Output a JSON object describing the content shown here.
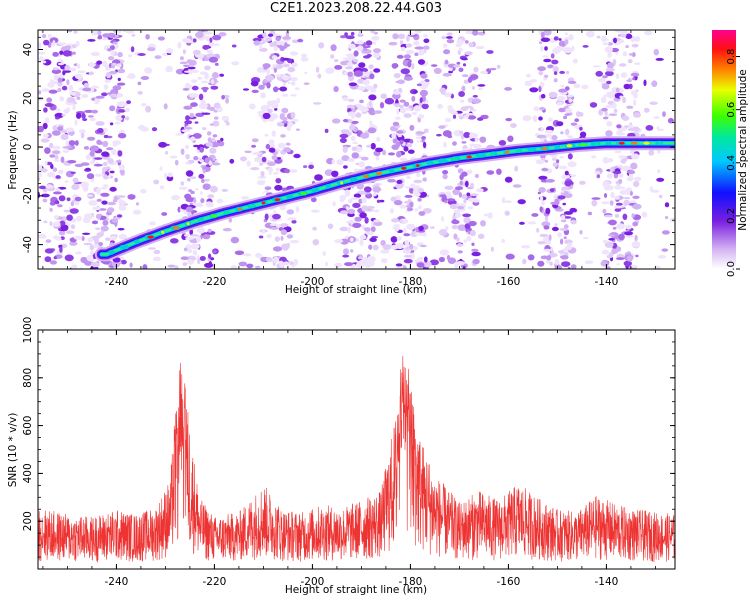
{
  "title": "C2E1.2023.208.22.44.G03",
  "chart_data": [
    {
      "type": "heatmap",
      "xlabel": "Height of straight line (km)",
      "ylabel": "Frequency (Hz)",
      "xlim": [
        -256,
        -126
      ],
      "ylim": [
        -50,
        48
      ],
      "x_ticks": [
        -240,
        -220,
        -200,
        -180,
        -160,
        -140
      ],
      "x_tick_labels": [
        "-240",
        "-220",
        "-200",
        "-180",
        "-160",
        "-140"
      ],
      "y_ticks": [
        -40,
        -20,
        0,
        20,
        40
      ],
      "y_tick_labels": [
        "-40",
        "-20",
        "0",
        "20",
        "40"
      ],
      "colorbar": {
        "label": "Normalized spectral amplitude",
        "range": [
          0,
          0.9
        ],
        "ticks": [
          0.0,
          0.2,
          0.4,
          0.6,
          0.8
        ],
        "tick_labels": [
          "0.0",
          "0.2",
          "0.4",
          "0.6",
          "0.8"
        ],
        "colormap": "white-purple-blue-cyan-green-yellow-red-magenta"
      },
      "ridge": {
        "x": [
          -242,
          -236,
          -230,
          -224,
          -218,
          -212,
          -206,
          -200,
          -194,
          -188,
          -182,
          -176,
          -170,
          -164,
          -158,
          -152,
          -146,
          -140,
          -134,
          -128
        ],
        "y": [
          -44,
          -39,
          -34.5,
          -30.5,
          -27,
          -24,
          -21,
          -18,
          -14.5,
          -11.5,
          -9,
          -6.5,
          -4.5,
          -3,
          -1.5,
          -0.5,
          0.8,
          1.6,
          1.6,
          1.6
        ]
      },
      "noise_bands_x": [
        -251,
        -242,
        -223,
        -207,
        -190,
        -180,
        -170,
        -150,
        -137
      ]
    },
    {
      "type": "line",
      "xlabel": "Height of straight line (km)",
      "ylabel": "SNR (10 * v/v)",
      "xlim": [
        -256,
        -126
      ],
      "ylim": [
        0,
        1000
      ],
      "x_ticks": [
        -240,
        -220,
        -200,
        -180,
        -160,
        -140
      ],
      "x_tick_labels": [
        "-240",
        "-220",
        "-200",
        "-180",
        "-160",
        "-140"
      ],
      "y_ticks": [
        200,
        400,
        600,
        800,
        1000
      ],
      "y_tick_labels": [
        "200",
        "400",
        "600",
        "800",
        "1000"
      ],
      "series": [
        {
          "color": "#ee3333",
          "envelope": {
            "x": [
              -256,
              -250,
              -245,
              -240,
              -236,
              -232,
              -229,
              -227.5,
              -226.5,
              -225,
              -223,
              -220,
              -215,
              -210,
              -206,
              -202,
              -198,
              -194,
              -190,
              -186,
              -183,
              -181.5,
              -180,
              -178,
              -175,
              -170,
              -166,
              -162,
              -158,
              -154,
              -150,
              -146,
              -142,
              -138,
              -134,
              -130,
              -126
            ],
            "y": [
              260,
              230,
              220,
              250,
              230,
              260,
              380,
              820,
              900,
              600,
              300,
              220,
              240,
              360,
              250,
              240,
              270,
              260,
              290,
              330,
              650,
              940,
              800,
              560,
              400,
              280,
              330,
              290,
              360,
              300,
              250,
              240,
              310,
              270,
              250,
              240,
              230
            ]
          }
        }
      ]
    }
  ]
}
